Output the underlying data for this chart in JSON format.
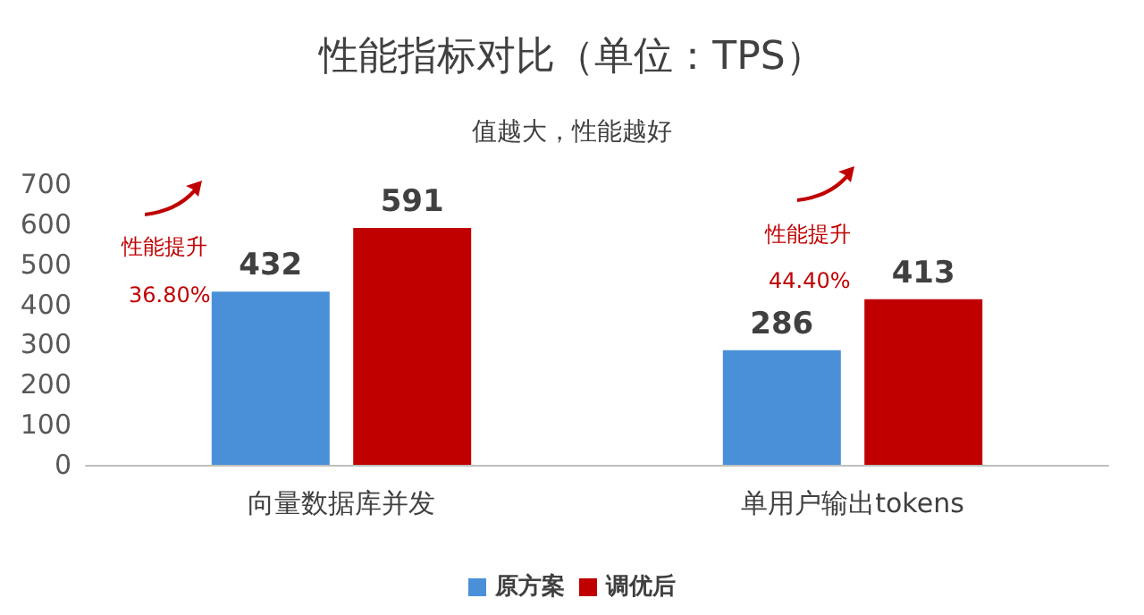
{
  "chart_data": {
    "type": "bar",
    "title": "性能指标对比（单位：TPS）",
    "subtitle": "值越大，性能越好",
    "categories": [
      "向量数据库并发",
      "单用户输出tokens"
    ],
    "series": [
      {
        "name": "原方案",
        "color": "#4a90d9",
        "values": [
          432,
          286
        ]
      },
      {
        "name": "调优后",
        "color": "#c00000",
        "values": [
          591,
          413
        ]
      }
    ],
    "ylim": [
      0,
      700
    ],
    "yticks": [
      0,
      100,
      200,
      300,
      400,
      500,
      600,
      700
    ],
    "grid": false,
    "legend": "bottom",
    "data_labels": true,
    "annotations": [
      "性能提升",
      "36.80%",
      "性能提升",
      "44.40%"
    ]
  }
}
